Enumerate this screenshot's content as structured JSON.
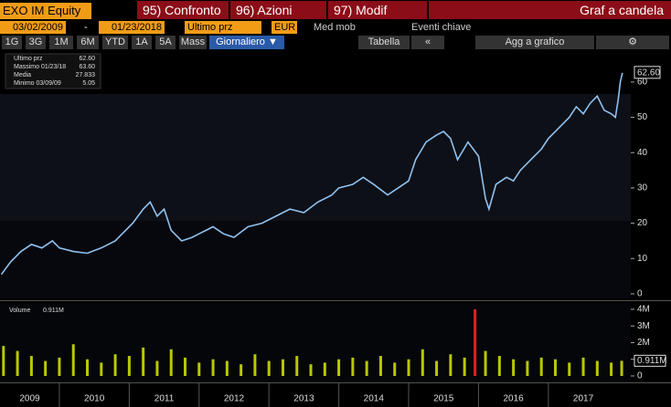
{
  "toolbar": {
    "ticker": "EXO IM Equity",
    "tabs": [
      "95) Confronto",
      "96) Azioni",
      "97) Modif"
    ],
    "title": "Graf a candela",
    "start_date": "03/02/2009",
    "date_separator": "-",
    "end_date": "01/23/2018",
    "field": "Ultimo prz",
    "currency": "EUR",
    "moving_average": "Med mob",
    "key_events": "Eventi chiave",
    "ranges": [
      "1G",
      "3G",
      "1M",
      "6M",
      "YTD",
      "1A",
      "5A",
      "Mass"
    ],
    "frequency": "Giornaliero ▼",
    "table": "Tabella",
    "back": "«",
    "add": "Agg a grafico"
  },
  "legend": [
    [
      "Ultimo prz",
      "62.60"
    ],
    [
      "Massimo 01/23/18",
      "63.60"
    ],
    [
      "Media",
      "27.833"
    ],
    [
      "Minimo 03/09/09",
      "5.05"
    ]
  ],
  "chart_data": [
    {
      "type": "line",
      "color": "#8fc2f0",
      "x": [
        2009.17,
        2009.3,
        2009.45,
        2009.6,
        2009.75,
        2009.9,
        2010.0,
        2010.2,
        2010.4,
        2010.6,
        2010.8,
        2010.9,
        2011.05,
        2011.2,
        2011.3,
        2011.4,
        2011.5,
        2011.6,
        2011.75,
        2011.9,
        2012.0,
        2012.2,
        2012.35,
        2012.5,
        2012.7,
        2012.9,
        2013.1,
        2013.3,
        2013.5,
        2013.7,
        2013.9,
        2014.0,
        2014.2,
        2014.35,
        2014.5,
        2014.7,
        2014.85,
        2015.0,
        2015.1,
        2015.25,
        2015.4,
        2015.5,
        2015.6,
        2015.7,
        2015.85,
        2016.0,
        2016.1,
        2016.15,
        2016.25,
        2016.4,
        2016.5,
        2016.6,
        2016.75,
        2016.9,
        2017.0,
        2017.1,
        2017.2,
        2017.3,
        2017.4,
        2017.5,
        2017.6,
        2017.7,
        2017.8,
        2017.9,
        2017.96,
        2018.0,
        2018.03,
        2018.06
      ],
      "values": [
        5.5,
        9,
        12,
        14,
        13,
        15,
        13,
        12,
        11.5,
        13,
        15,
        17,
        20,
        24,
        26,
        22,
        24,
        18,
        15,
        16,
        17,
        19,
        17,
        16,
        19,
        20,
        22,
        24,
        23,
        26,
        28,
        30,
        31,
        33,
        31,
        28,
        30,
        32,
        38,
        43,
        45,
        46,
        44,
        38,
        43,
        39,
        27,
        24,
        31,
        33,
        32,
        35,
        38,
        41,
        44,
        46,
        48,
        50,
        53,
        51,
        54,
        56,
        52,
        51,
        50,
        55,
        60,
        62.6
      ],
      "last": {
        "value": 62.6,
        "label": "62.60"
      },
      "xlim": [
        2009.15,
        2018.18
      ],
      "ylim": [
        -1.3,
        68.5
      ],
      "yticks": [
        0,
        10,
        20,
        30,
        40,
        50,
        60
      ],
      "xticks": [
        {
          "value": 2009,
          "label": "2009"
        },
        {
          "value": 2010,
          "label": "2010"
        },
        {
          "value": 2011,
          "label": "2011"
        },
        {
          "value": 2012,
          "label": "2012"
        },
        {
          "value": 2013,
          "label": "2013"
        },
        {
          "value": 2014,
          "label": "2014"
        },
        {
          "value": 2015,
          "label": "2015"
        },
        {
          "value": 2016,
          "label": "2016"
        },
        {
          "value": 2017,
          "label": "2017"
        }
      ]
    },
    {
      "type": "bar",
      "name": "Volume",
      "color": "#b9c800",
      "peak_color": "#e02020",
      "x": [
        2009.2,
        2009.4,
        2009.6,
        2009.8,
        2010.0,
        2010.2,
        2010.4,
        2010.6,
        2010.8,
        2011.0,
        2011.2,
        2011.4,
        2011.6,
        2011.8,
        2012.0,
        2012.2,
        2012.4,
        2012.6,
        2012.8,
        2013.0,
        2013.2,
        2013.4,
        2013.6,
        2013.8,
        2014.0,
        2014.2,
        2014.4,
        2014.6,
        2014.8,
        2015.0,
        2015.2,
        2015.4,
        2015.6,
        2015.8,
        2015.95,
        2016.1,
        2016.3,
        2016.5,
        2016.7,
        2016.9,
        2017.1,
        2017.3,
        2017.5,
        2017.7,
        2017.9,
        2018.05
      ],
      "values": [
        1800000,
        1500000,
        1200000,
        900000,
        1100000,
        1900000,
        1000000,
        800000,
        1300000,
        1200000,
        1700000,
        900000,
        1600000,
        1100000,
        800000,
        1000000,
        900000,
        700000,
        1300000,
        900000,
        1000000,
        1200000,
        700000,
        800000,
        1000000,
        1100000,
        900000,
        1200000,
        800000,
        1000000,
        1600000,
        900000,
        1300000,
        1100000,
        4000000,
        1500000,
        1200000,
        1000000,
        900000,
        1100000,
        1000000,
        800000,
        1100000,
        900000,
        800000,
        911000
      ],
      "last": {
        "value": 911000,
        "label": "0.911M"
      },
      "ylim": [
        -330000,
        4380000
      ],
      "yticks": [
        0,
        {
          "value": 1000000,
          "label": "1M"
        },
        {
          "value": 2000000,
          "label": "2M"
        },
        {
          "value": 3000000,
          "label": "3M"
        },
        {
          "value": 4000000,
          "label": "4M"
        }
      ]
    }
  ]
}
